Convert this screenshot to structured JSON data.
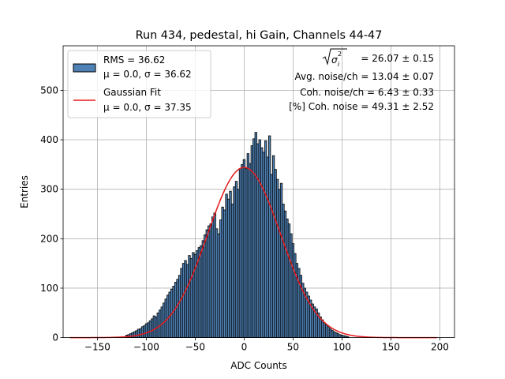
{
  "chart_data": {
    "type": "bar",
    "title": "Run 434, pedestal, hi Gain, Channels 44-47",
    "xlabel": "ADC Counts",
    "ylabel": "Entries",
    "xlim": [
      -185,
      215
    ],
    "ylim": [
      0,
      590
    ],
    "xticks": [
      -150,
      -100,
      -50,
      0,
      50,
      100,
      150,
      200
    ],
    "yticks": [
      0,
      100,
      200,
      300,
      400,
      500
    ],
    "grid": true,
    "legend_position": "top-left",
    "legend": [
      {
        "kind": "bar",
        "line1": "RMS = 36.62",
        "line2": "μ = 0.0, σ = 36.62",
        "color": "#4f81b4"
      },
      {
        "kind": "line",
        "line1": "Gaussian Fit",
        "line2": "μ = 0.0, σ = 37.35",
        "color": "#e8191a"
      }
    ],
    "annotations": [
      "= 26.07 ± 0.15",
      "Avg. noise/ch = 13.04 ± 0.07",
      "Coh. noise/ch = 6.43 ± 0.33",
      "[%] Coh. noise = 49.31 ± 2.52"
    ],
    "annotation_symbol": {
      "base": "σ",
      "sub": "i",
      "sup": "2"
    },
    "histogram": {
      "bin_width": 2,
      "bins": [
        {
          "x": -120,
          "y": 5
        },
        {
          "x": -118,
          "y": 6
        },
        {
          "x": -116,
          "y": 8
        },
        {
          "x": -114,
          "y": 10
        },
        {
          "x": -112,
          "y": 12
        },
        {
          "x": -110,
          "y": 14
        },
        {
          "x": -108,
          "y": 17
        },
        {
          "x": -106,
          "y": 18
        },
        {
          "x": -104,
          "y": 22
        },
        {
          "x": -102,
          "y": 24
        },
        {
          "x": -100,
          "y": 28
        },
        {
          "x": -98,
          "y": 30
        },
        {
          "x": -96,
          "y": 34
        },
        {
          "x": -94,
          "y": 38
        },
        {
          "x": -92,
          "y": 44
        },
        {
          "x": -90,
          "y": 42
        },
        {
          "x": -88,
          "y": 50
        },
        {
          "x": -86,
          "y": 56
        },
        {
          "x": -84,
          "y": 62
        },
        {
          "x": -82,
          "y": 70
        },
        {
          "x": -80,
          "y": 78
        },
        {
          "x": -78,
          "y": 86
        },
        {
          "x": -76,
          "y": 92
        },
        {
          "x": -74,
          "y": 98
        },
        {
          "x": -72,
          "y": 104
        },
        {
          "x": -70,
          "y": 112
        },
        {
          "x": -68,
          "y": 118
        },
        {
          "x": -66,
          "y": 126
        },
        {
          "x": -64,
          "y": 140
        },
        {
          "x": -62,
          "y": 150
        },
        {
          "x": -60,
          "y": 156
        },
        {
          "x": -58,
          "y": 148
        },
        {
          "x": -56,
          "y": 166
        },
        {
          "x": -54,
          "y": 160
        },
        {
          "x": -52,
          "y": 172
        },
        {
          "x": -50,
          "y": 168
        },
        {
          "x": -48,
          "y": 176
        },
        {
          "x": -46,
          "y": 182
        },
        {
          "x": -44,
          "y": 186
        },
        {
          "x": -42,
          "y": 196
        },
        {
          "x": -40,
          "y": 208
        },
        {
          "x": -38,
          "y": 218
        },
        {
          "x": -36,
          "y": 226
        },
        {
          "x": -34,
          "y": 230
        },
        {
          "x": -32,
          "y": 244
        },
        {
          "x": -30,
          "y": 252
        },
        {
          "x": -28,
          "y": 220
        },
        {
          "x": -26,
          "y": 210
        },
        {
          "x": -24,
          "y": 238
        },
        {
          "x": -22,
          "y": 264
        },
        {
          "x": -20,
          "y": 258
        },
        {
          "x": -18,
          "y": 290
        },
        {
          "x": -16,
          "y": 280
        },
        {
          "x": -14,
          "y": 296
        },
        {
          "x": -12,
          "y": 270
        },
        {
          "x": -10,
          "y": 305
        },
        {
          "x": -8,
          "y": 316
        },
        {
          "x": -6,
          "y": 300
        },
        {
          "x": -4,
          "y": 342
        },
        {
          "x": -2,
          "y": 350
        },
        {
          "x": 0,
          "y": 360
        },
        {
          "x": 2,
          "y": 342
        },
        {
          "x": 4,
          "y": 372
        },
        {
          "x": 6,
          "y": 352
        },
        {
          "x": 8,
          "y": 388
        },
        {
          "x": 10,
          "y": 402
        },
        {
          "x": 12,
          "y": 415
        },
        {
          "x": 14,
          "y": 392
        },
        {
          "x": 16,
          "y": 400
        },
        {
          "x": 18,
          "y": 384
        },
        {
          "x": 20,
          "y": 375
        },
        {
          "x": 22,
          "y": 398
        },
        {
          "x": 24,
          "y": 365
        },
        {
          "x": 26,
          "y": 408
        },
        {
          "x": 28,
          "y": 330
        },
        {
          "x": 30,
          "y": 368
        },
        {
          "x": 32,
          "y": 340
        },
        {
          "x": 34,
          "y": 320
        },
        {
          "x": 36,
          "y": 300
        },
        {
          "x": 38,
          "y": 312
        },
        {
          "x": 40,
          "y": 270
        },
        {
          "x": 42,
          "y": 256
        },
        {
          "x": 44,
          "y": 240
        },
        {
          "x": 46,
          "y": 230
        },
        {
          "x": 48,
          "y": 210
        },
        {
          "x": 50,
          "y": 190
        },
        {
          "x": 52,
          "y": 170
        },
        {
          "x": 54,
          "y": 150
        },
        {
          "x": 56,
          "y": 140
        },
        {
          "x": 58,
          "y": 126
        },
        {
          "x": 60,
          "y": 110
        },
        {
          "x": 62,
          "y": 100
        },
        {
          "x": 64,
          "y": 92
        },
        {
          "x": 66,
          "y": 84
        },
        {
          "x": 68,
          "y": 76
        },
        {
          "x": 70,
          "y": 68
        },
        {
          "x": 72,
          "y": 62
        },
        {
          "x": 74,
          "y": 58
        },
        {
          "x": 76,
          "y": 50
        },
        {
          "x": 78,
          "y": 42
        },
        {
          "x": 80,
          "y": 36
        },
        {
          "x": 82,
          "y": 30
        },
        {
          "x": 84,
          "y": 26
        },
        {
          "x": 86,
          "y": 22
        },
        {
          "x": 88,
          "y": 18
        },
        {
          "x": 90,
          "y": 15
        },
        {
          "x": 92,
          "y": 12
        },
        {
          "x": 94,
          "y": 10
        },
        {
          "x": 96,
          "y": 8
        },
        {
          "x": 98,
          "y": 6
        },
        {
          "x": 100,
          "y": 5
        },
        {
          "x": 102,
          "y": 4
        },
        {
          "x": 104,
          "y": 3
        },
        {
          "x": 106,
          "y": 2
        }
      ],
      "fill": "#4f81b4",
      "edge": "#000000"
    },
    "fit": {
      "mu": 0.0,
      "sigma": 37.35,
      "amplitude": 344,
      "x_range": [
        -178,
        197
      ],
      "color": "#e8191a"
    }
  }
}
